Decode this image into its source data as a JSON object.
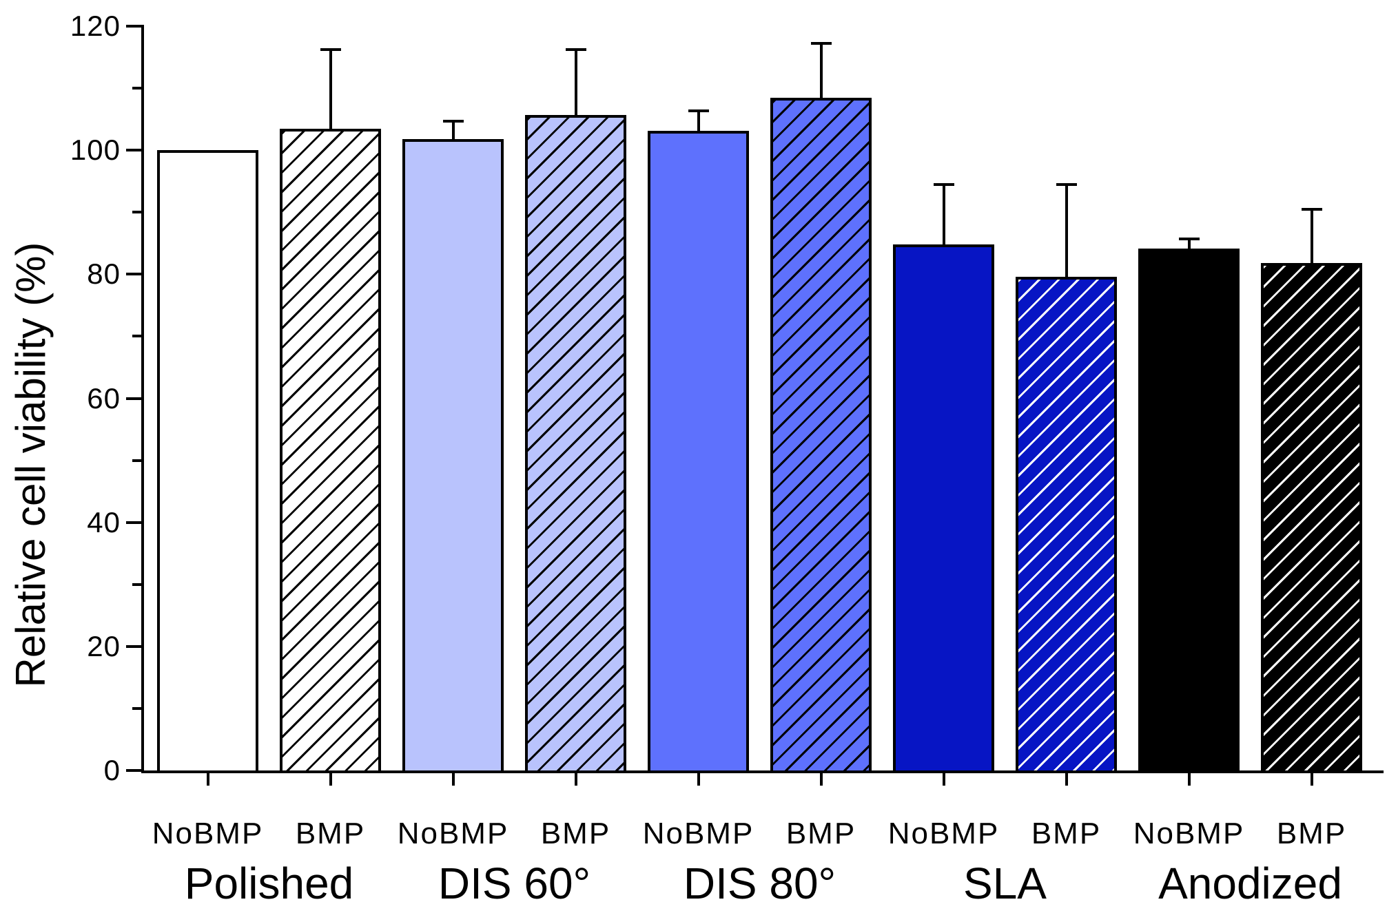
{
  "chart_data": {
    "type": "bar",
    "title": "",
    "ylabel": "Relative cell viability (%)",
    "xlabel": "",
    "ylim": [
      0,
      120
    ],
    "yticks_major": [
      0,
      20,
      40,
      60,
      80,
      100,
      120
    ],
    "yticks_minor": [
      10,
      30,
      50,
      70,
      90,
      110
    ],
    "grid": false,
    "legend": "none",
    "bar_edge_color": "#000000",
    "error_bars": "upper only, black caps",
    "groups": [
      {
        "label": "Polished",
        "bars": [
          {
            "condition": "NoBMP",
            "value": 100.0,
            "error": null,
            "fill": "#ffffff",
            "hatch": null
          },
          {
            "condition": "BMP",
            "value": 103.5,
            "error": 12.7,
            "fill": "#ffffff",
            "hatch": "#000000"
          }
        ]
      },
      {
        "label": "DIS 60°",
        "bars": [
          {
            "condition": "NoBMP",
            "value": 101.8,
            "error": 2.9,
            "fill": "#b9c3fd",
            "hatch": null
          },
          {
            "condition": "BMP",
            "value": 105.7,
            "error": 10.5,
            "fill": "#b9c3fd",
            "hatch": "#000000"
          }
        ]
      },
      {
        "label": "DIS 80°",
        "bars": [
          {
            "condition": "NoBMP",
            "value": 103.1,
            "error": 3.2,
            "fill": "#5e71fd",
            "hatch": null
          },
          {
            "condition": "BMP",
            "value": 108.4,
            "error": 8.8,
            "fill": "#5e71fd",
            "hatch": "#000000"
          }
        ]
      },
      {
        "label": "SLA",
        "bars": [
          {
            "condition": "NoBMP",
            "value": 84.8,
            "error": 9.7,
            "fill": "#0715c4",
            "hatch": null
          },
          {
            "condition": "BMP",
            "value": 79.6,
            "error": 14.9,
            "fill": "#0715c4",
            "hatch": "#ffffff"
          }
        ]
      },
      {
        "label": "Anodized",
        "bars": [
          {
            "condition": "NoBMP",
            "value": 84.1,
            "error": 1.6,
            "fill": "#000000",
            "hatch": null
          },
          {
            "condition": "BMP",
            "value": 81.8,
            "error": 8.7,
            "fill": "#000000",
            "hatch": "#ffffff"
          }
        ]
      }
    ]
  }
}
